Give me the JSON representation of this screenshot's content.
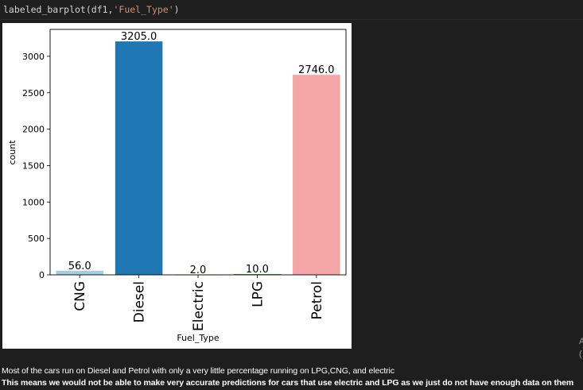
{
  "code_cell": {
    "prefix": "labeled_barplot(df1,",
    "arg": "'Fuel_Type'",
    "suffix": ")"
  },
  "chart_data": {
    "type": "bar",
    "categories": [
      "CNG",
      "Diesel",
      "Electric",
      "LPG",
      "Petrol"
    ],
    "values": [
      56,
      3205,
      2,
      10,
      2746
    ],
    "data_labels": [
      "56.0",
      "3205.0",
      "2.0",
      "10.0",
      "2746.0"
    ],
    "colors": [
      "#a6cee3",
      "#1f78b4",
      "#b2df8a",
      "#33a02c",
      "#f4a6a6"
    ],
    "xlabel": "Fuel_Type",
    "ylabel": "count",
    "ylim": [
      0,
      3370
    ],
    "yticks": [
      0,
      500,
      1000,
      1500,
      2000,
      2500,
      3000
    ],
    "grid": false
  },
  "markdown": {
    "line1": "Most of the cars run on Diesel and Petrol with only a very little percentage running on LPG,CNG, and electric",
    "line2": "This means we would not be able to make very accurate predictions for cars that use electric and LPG as we just do not have enough data on them"
  },
  "edge_glyphs": [
    "A",
    "("
  ]
}
